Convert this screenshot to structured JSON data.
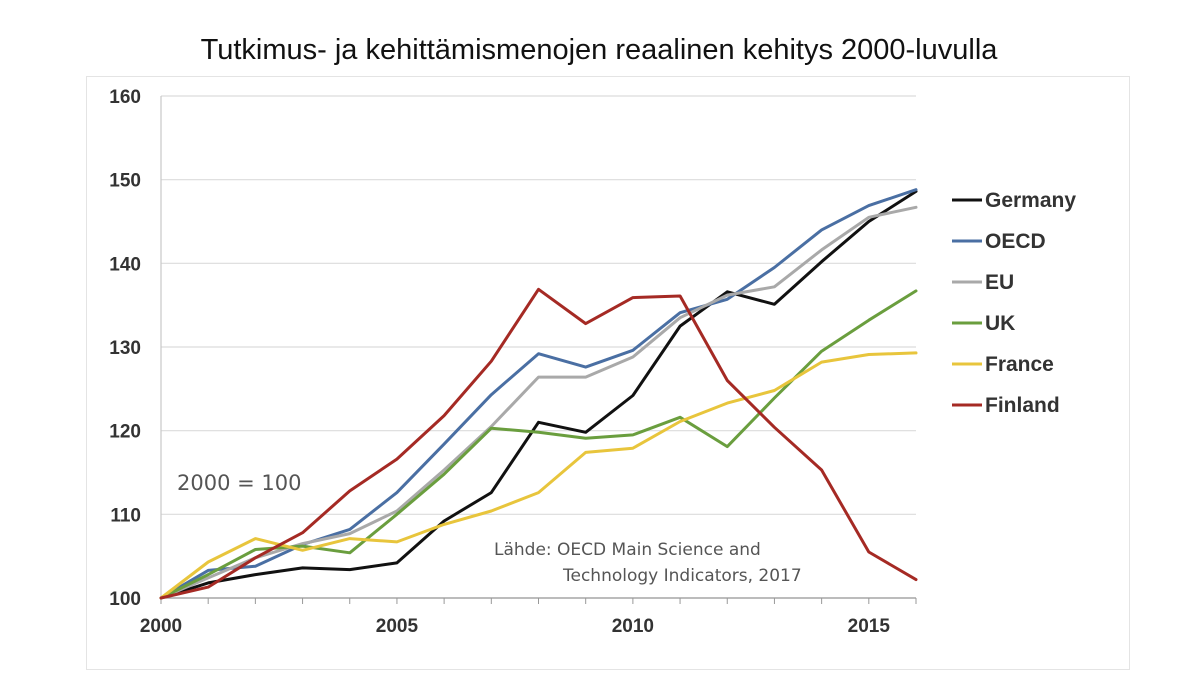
{
  "chart_data": {
    "type": "line",
    "title": "Tutkimus- ja kehittämismenojen reaalinen kehitys 2000-luvulla",
    "xlabel": "",
    "ylabel": "",
    "x": [
      2000,
      2001,
      2002,
      2003,
      2004,
      2005,
      2006,
      2007,
      2008,
      2009,
      2010,
      2011,
      2012,
      2013,
      2014,
      2015,
      2016
    ],
    "xlim": [
      2000,
      2016
    ],
    "ylim": [
      100,
      160
    ],
    "x_ticks": [
      2000,
      2005,
      2010,
      2015
    ],
    "y_ticks": [
      100,
      110,
      120,
      130,
      140,
      150,
      160
    ],
    "grid": "horizontal",
    "legend_position": "right",
    "annotations": {
      "base_note": "2000 = 100",
      "source_line1": "Lähde: OECD Main Science and",
      "source_line2": "Technology Indicators, 2017"
    },
    "series": [
      {
        "name": "Germany",
        "color": "#111111",
        "values": [
          100,
          101.8,
          102.8,
          103.6,
          103.4,
          104.2,
          109.2,
          112.6,
          121,
          119.8,
          124.2,
          132.5,
          136.6,
          135.1,
          140.2,
          145,
          148.6
        ]
      },
      {
        "name": "OECD",
        "color": "#4a6fa3",
        "values": [
          100,
          103.3,
          103.8,
          106.4,
          108.2,
          112.6,
          118.4,
          124.3,
          129.2,
          127.6,
          129.6,
          134.1,
          135.7,
          139.5,
          144,
          146.9,
          148.8
        ]
      },
      {
        "name": "EU",
        "color": "#a9a9a9",
        "values": [
          100,
          102.4,
          104.8,
          106.5,
          107.7,
          110.4,
          115.3,
          120.5,
          126.4,
          126.4,
          128.8,
          133.5,
          136.2,
          137.2,
          141.6,
          145.5,
          146.7
        ]
      },
      {
        "name": "UK",
        "color": "#6a9e3e",
        "values": [
          100,
          102.8,
          105.8,
          106.2,
          105.4,
          110,
          114.8,
          120.3,
          119.8,
          119.1,
          119.5,
          121.6,
          118.1,
          123.9,
          129.5,
          133.2,
          136.7
        ]
      },
      {
        "name": "France",
        "color": "#e8c53c",
        "values": [
          100,
          104.3,
          107.1,
          105.7,
          107.1,
          106.7,
          108.8,
          110.4,
          112.6,
          117.4,
          117.9,
          121.1,
          123.3,
          124.8,
          128.2,
          129.1,
          129.3
        ]
      },
      {
        "name": "Finland",
        "color": "#a52a24",
        "values": [
          100,
          101.3,
          104.8,
          107.8,
          112.8,
          116.6,
          121.8,
          128.3,
          136.9,
          132.8,
          135.9,
          136.1,
          126,
          120.4,
          115.3,
          105.5,
          102.2
        ]
      }
    ]
  }
}
